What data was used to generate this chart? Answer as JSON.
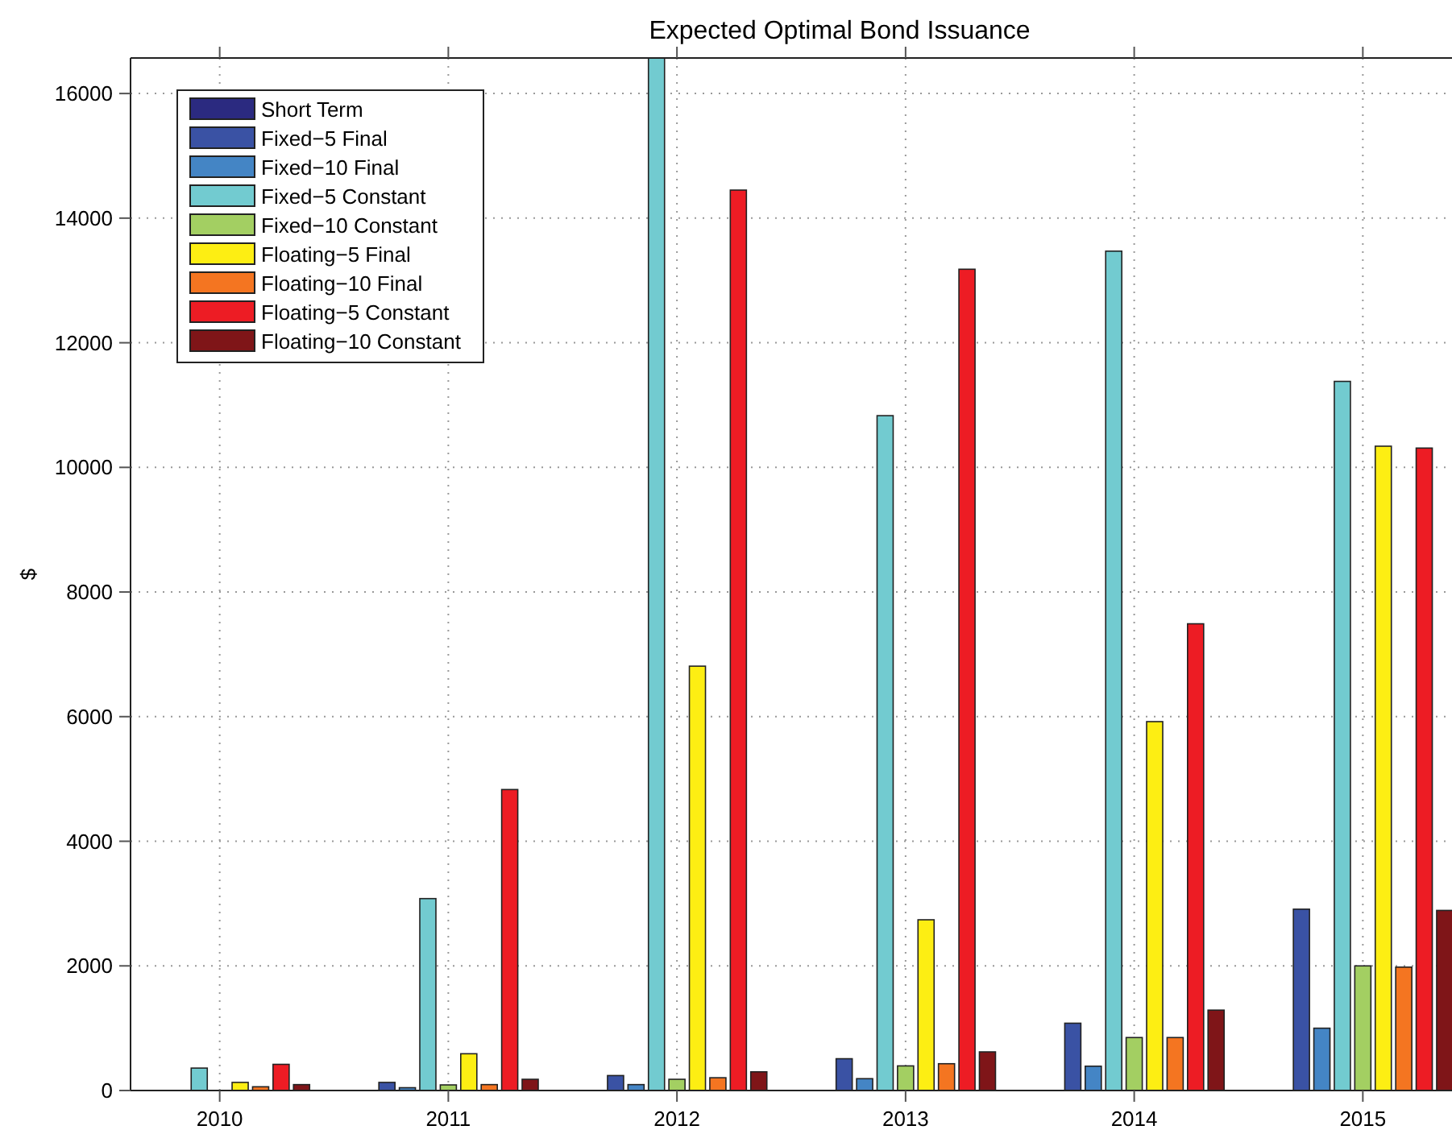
{
  "chart_data": {
    "type": "bar",
    "title": "Expected Optimal Bond Issuance",
    "ylabel": "$",
    "categories": [
      "2010",
      "2011",
      "2012",
      "2013",
      "2014",
      "2015"
    ],
    "series": [
      {
        "name": "Short Term",
        "color": "#2b2a80",
        "values": [
          0,
          0,
          0,
          0,
          0,
          0
        ]
      },
      {
        "name": "Fixed−5 Final",
        "color": "#3a52a4",
        "values": [
          0,
          130,
          240,
          510,
          1080,
          2910
        ]
      },
      {
        "name": "Fixed−10 Final",
        "color": "#4485c5",
        "values": [
          0,
          45,
          95,
          190,
          390,
          1000
        ]
      },
      {
        "name": "Fixed−5 Constant",
        "color": "#72cbd0",
        "values": [
          360,
          3080,
          16570,
          10830,
          13470,
          11380
        ]
      },
      {
        "name": "Fixed−10 Constant",
        "color": "#a3cf62",
        "values": [
          0,
          90,
          180,
          395,
          850,
          2000
        ]
      },
      {
        "name": "Floating−5 Final",
        "color": "#fdee13",
        "values": [
          130,
          590,
          6810,
          2740,
          5920,
          10340
        ]
      },
      {
        "name": "Floating−10 Final",
        "color": "#f47521",
        "values": [
          60,
          95,
          205,
          430,
          850,
          1980
        ]
      },
      {
        "name": "Floating−5 Constant",
        "color": "#ed1c24",
        "values": [
          420,
          4830,
          14450,
          13180,
          7490,
          10310
        ]
      },
      {
        "name": "Floating−10 Constant",
        "color": "#7f1518",
        "values": [
          95,
          180,
          300,
          620,
          1290,
          2890
        ]
      }
    ],
    "ylim": [
      0,
      16570
    ],
    "yticks": [
      0,
      2000,
      4000,
      6000,
      8000,
      10000,
      12000,
      14000,
      16000
    ],
    "grid": true,
    "legend": "top left"
  }
}
